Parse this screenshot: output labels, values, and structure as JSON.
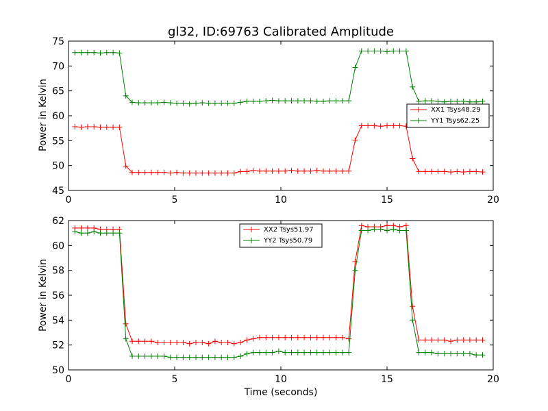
{
  "chart_data": [
    {
      "type": "line",
      "title": "gl32, ID:69763 Calibrated Amplitude",
      "xlabel": "",
      "ylabel": "Power in Kelvin",
      "xlim": [
        0,
        20
      ],
      "ylim": [
        45,
        75
      ],
      "xticks": [
        0,
        5,
        10,
        15,
        20
      ],
      "yticks": [
        45,
        50,
        55,
        60,
        65,
        70,
        75
      ],
      "grid": false,
      "legend_position": "center-right",
      "series": [
        {
          "name": "XX1 Tsys48.29",
          "color": "#ff0000",
          "x": [
            0.3,
            0.6,
            0.9,
            1.2,
            1.5,
            1.8,
            2.1,
            2.4,
            2.7,
            3.0,
            3.3,
            3.6,
            3.9,
            4.2,
            4.5,
            4.8,
            5.1,
            5.4,
            5.7,
            6.0,
            6.3,
            6.6,
            6.9,
            7.2,
            7.5,
            7.8,
            8.1,
            8.4,
            8.7,
            9.0,
            9.3,
            9.6,
            9.9,
            10.2,
            10.5,
            10.8,
            11.1,
            11.4,
            11.7,
            12.0,
            12.3,
            12.6,
            12.9,
            13.2,
            13.5,
            13.8,
            14.1,
            14.4,
            14.7,
            15.0,
            15.3,
            15.6,
            15.9,
            16.2,
            16.5,
            16.8,
            17.1,
            17.4,
            17.7,
            18.0,
            18.3,
            18.6,
            18.9,
            19.2,
            19.5
          ],
          "values": [
            57.8,
            57.7,
            57.8,
            57.8,
            57.7,
            57.7,
            57.7,
            57.7,
            49.9,
            48.6,
            48.6,
            48.6,
            48.6,
            48.6,
            48.6,
            48.5,
            48.6,
            48.5,
            48.5,
            48.5,
            48.5,
            48.5,
            48.5,
            48.5,
            48.5,
            48.5,
            48.8,
            48.8,
            49.0,
            48.9,
            48.9,
            48.9,
            48.9,
            48.9,
            49.0,
            48.9,
            48.9,
            48.9,
            49.0,
            48.9,
            48.9,
            48.9,
            48.9,
            48.9,
            55.1,
            58.0,
            58.0,
            58.0,
            57.9,
            58.0,
            58.0,
            58.0,
            57.9,
            51.4,
            48.8,
            48.8,
            48.8,
            48.8,
            48.8,
            48.7,
            48.8,
            48.7,
            48.8,
            48.8,
            48.7
          ]
        },
        {
          "name": "YY1 Tsys62.25",
          "color": "#008000",
          "x": [
            0.3,
            0.6,
            0.9,
            1.2,
            1.5,
            1.8,
            2.1,
            2.4,
            2.7,
            3.0,
            3.3,
            3.6,
            3.9,
            4.2,
            4.5,
            4.8,
            5.1,
            5.4,
            5.7,
            6.0,
            6.3,
            6.6,
            6.9,
            7.2,
            7.5,
            7.8,
            8.1,
            8.4,
            8.7,
            9.0,
            9.3,
            9.6,
            9.9,
            10.2,
            10.5,
            10.8,
            11.1,
            11.4,
            11.7,
            12.0,
            12.3,
            12.6,
            12.9,
            13.2,
            13.5,
            13.8,
            14.1,
            14.4,
            14.7,
            15.0,
            15.3,
            15.6,
            15.9,
            16.2,
            16.5,
            16.8,
            17.1,
            17.4,
            17.7,
            18.0,
            18.3,
            18.6,
            18.9,
            19.2,
            19.5
          ],
          "values": [
            72.7,
            72.7,
            72.7,
            72.7,
            72.6,
            72.7,
            72.7,
            72.6,
            64.0,
            62.7,
            62.6,
            62.6,
            62.6,
            62.6,
            62.7,
            62.6,
            62.5,
            62.5,
            62.4,
            62.5,
            62.6,
            62.5,
            62.5,
            62.5,
            62.5,
            62.5,
            62.7,
            62.9,
            62.9,
            62.9,
            63.0,
            63.1,
            63.0,
            63.0,
            63.0,
            63.0,
            63.0,
            63.0,
            62.9,
            62.9,
            63.0,
            63.0,
            63.0,
            63.0,
            69.7,
            73.0,
            73.0,
            73.0,
            73.0,
            72.9,
            73.0,
            73.0,
            73.0,
            65.8,
            62.9,
            63.0,
            63.0,
            62.9,
            62.8,
            62.9,
            62.9,
            62.9,
            62.8,
            62.8,
            62.9
          ]
        }
      ]
    },
    {
      "type": "line",
      "title": "",
      "xlabel": "Time (seconds)",
      "ylabel": "Power in Kelvin",
      "xlim": [
        0,
        20
      ],
      "ylim": [
        50,
        62
      ],
      "xticks": [
        0,
        5,
        10,
        15,
        20
      ],
      "yticks": [
        50,
        52,
        54,
        56,
        58,
        60,
        62
      ],
      "grid": false,
      "legend_position": "top-center",
      "series": [
        {
          "name": "XX2 Tsys51.97",
          "color": "#ff0000",
          "x": [
            0.3,
            0.6,
            0.9,
            1.2,
            1.5,
            1.8,
            2.1,
            2.4,
            2.7,
            3.0,
            3.3,
            3.6,
            3.9,
            4.2,
            4.5,
            4.8,
            5.1,
            5.4,
            5.7,
            6.0,
            6.3,
            6.6,
            6.9,
            7.2,
            7.5,
            7.8,
            8.1,
            8.4,
            8.7,
            9.0,
            9.3,
            9.6,
            9.9,
            10.2,
            10.5,
            10.8,
            11.1,
            11.4,
            11.7,
            12.0,
            12.3,
            12.6,
            12.9,
            13.2,
            13.5,
            13.8,
            14.1,
            14.4,
            14.7,
            15.0,
            15.3,
            15.6,
            15.9,
            16.2,
            16.5,
            16.8,
            17.1,
            17.4,
            17.7,
            18.0,
            18.3,
            18.6,
            18.9,
            19.2,
            19.5
          ],
          "values": [
            61.4,
            61.4,
            61.4,
            61.4,
            61.3,
            61.3,
            61.3,
            61.3,
            53.7,
            52.3,
            52.3,
            52.3,
            52.3,
            52.2,
            52.2,
            52.2,
            52.2,
            52.2,
            52.1,
            52.2,
            52.2,
            52.1,
            52.3,
            52.2,
            52.2,
            52.1,
            52.2,
            52.4,
            52.5,
            52.6,
            52.6,
            52.6,
            52.6,
            52.6,
            52.6,
            52.6,
            52.6,
            52.6,
            52.6,
            52.6,
            52.6,
            52.6,
            52.6,
            52.5,
            58.7,
            61.6,
            61.5,
            61.5,
            61.5,
            61.6,
            61.6,
            61.5,
            61.6,
            55.1,
            52.4,
            52.4,
            52.4,
            52.4,
            52.4,
            52.3,
            52.4,
            52.4,
            52.4,
            52.4,
            52.4
          ]
        },
        {
          "name": "YY2 Tsys50.79",
          "color": "#008000",
          "x": [
            0.3,
            0.6,
            0.9,
            1.2,
            1.5,
            1.8,
            2.1,
            2.4,
            2.7,
            3.0,
            3.3,
            3.6,
            3.9,
            4.2,
            4.5,
            4.8,
            5.1,
            5.4,
            5.7,
            6.0,
            6.3,
            6.6,
            6.9,
            7.2,
            7.5,
            7.8,
            8.1,
            8.4,
            8.7,
            9.0,
            9.3,
            9.6,
            9.9,
            10.2,
            10.5,
            10.8,
            11.1,
            11.4,
            11.7,
            12.0,
            12.3,
            12.6,
            12.9,
            13.2,
            13.5,
            13.8,
            14.1,
            14.4,
            14.7,
            15.0,
            15.3,
            15.6,
            15.9,
            16.2,
            16.5,
            16.8,
            17.1,
            17.4,
            17.7,
            18.0,
            18.3,
            18.6,
            18.9,
            19.2,
            19.5
          ],
          "values": [
            61.1,
            61.0,
            61.0,
            61.1,
            61.0,
            61.0,
            61.0,
            61.0,
            52.5,
            51.1,
            51.1,
            51.1,
            51.1,
            51.1,
            51.1,
            51.0,
            51.0,
            51.0,
            51.0,
            51.0,
            51.0,
            51.0,
            51.0,
            51.0,
            51.0,
            51.0,
            51.1,
            51.3,
            51.4,
            51.4,
            51.4,
            51.4,
            51.5,
            51.4,
            51.4,
            51.4,
            51.4,
            51.4,
            51.4,
            51.4,
            51.4,
            51.4,
            51.4,
            51.4,
            58.0,
            61.2,
            61.2,
            61.3,
            61.3,
            61.2,
            61.3,
            61.2,
            61.2,
            54.0,
            51.4,
            51.4,
            51.4,
            51.3,
            51.3,
            51.3,
            51.3,
            51.3,
            51.3,
            51.2,
            51.2
          ]
        }
      ]
    }
  ]
}
